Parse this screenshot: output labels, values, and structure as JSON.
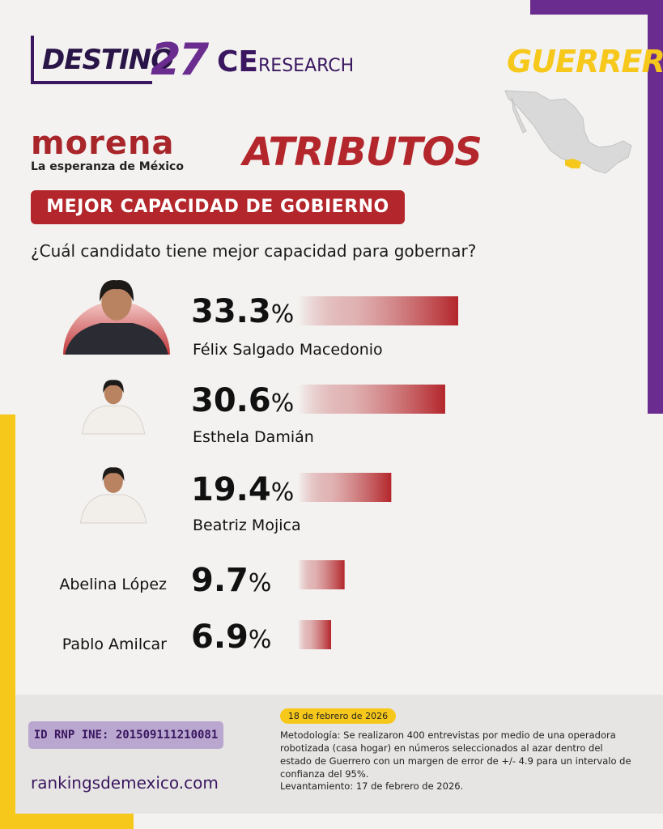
{
  "brand": {
    "destino_text": "DESTINO",
    "destino_num": "27",
    "ce_part": "CE",
    "research_part": "RESEARCH",
    "state": "GUERRERO",
    "party_name": "morena",
    "party_slogan": "La esperanza de México"
  },
  "header": {
    "section_title": "ATRIBUTOS",
    "subtitle": "MEJOR CAPACIDAD DE GOBIERNO",
    "question": "¿Cuál candidato tiene mejor capacidad para gobernar?"
  },
  "colors": {
    "accent_red": "#b3262b",
    "purple": "#6a2c8f",
    "yellow": "#f7c81c"
  },
  "chart_data": {
    "type": "bar",
    "orientation": "horizontal",
    "categories": [
      "Félix Salgado Macedonio",
      "Esthela Damián",
      "Beatriz Mojica",
      "Abelina López",
      "Pablo Amilcar"
    ],
    "values": [
      33.3,
      30.6,
      19.4,
      9.7,
      6.9
    ],
    "value_labels": [
      "33.3",
      "30.6",
      "19.4",
      "9.7",
      "6.9"
    ],
    "unit": "%",
    "title": "MEJOR CAPACIDAD DE GOBIERNO",
    "photos": [
      "person-photo",
      "person-photo",
      "person-photo",
      null,
      null
    ]
  },
  "footer": {
    "rnp": "ID RNP INE: 201509111210081",
    "website": "rankingsdemexico.com",
    "date_badge": "18 de febrero de 2026",
    "methodology": "Metodología: Se realizaron 400 entrevistas por medio de una operadora robotizada (casa hogar) en números seleccionados al azar dentro del estado de Guerrero con un margen de error de +/- 4.9 para un intervalo de confianza del 95%.",
    "levantamiento": "Levantamiento: 17 de febrero de 2026."
  }
}
